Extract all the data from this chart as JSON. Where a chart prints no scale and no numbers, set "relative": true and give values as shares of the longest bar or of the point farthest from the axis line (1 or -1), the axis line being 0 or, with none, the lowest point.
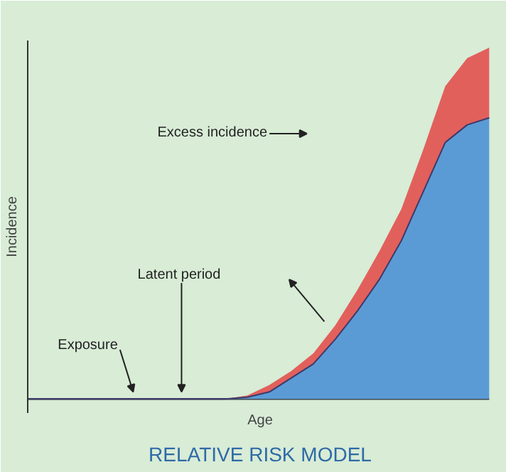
{
  "chart_data": {
    "type": "area",
    "stacked": true,
    "relative": true,
    "title": "RELATIVE RISK MODEL",
    "xlabel": "Age",
    "ylabel": "Incidence",
    "categories": [
      null,
      null,
      null,
      null,
      null,
      null,
      null,
      null,
      null,
      null,
      null,
      null,
      null,
      null,
      null,
      null,
      null,
      null,
      null,
      null,
      null,
      null
    ],
    "series": [
      {
        "color": "#5b9bd5",
        "values": [
          0,
          0,
          0,
          0,
          0,
          0,
          0,
          0,
          0,
          0,
          0.005,
          0.02,
          0.06,
          0.1,
          0.17,
          0.25,
          0.34,
          0.45,
          0.59,
          0.73,
          0.78,
          0.8
        ]
      },
      {
        "color": "#e2605c",
        "values": [
          0,
          0,
          0,
          0,
          0,
          0,
          0,
          0,
          0,
          0,
          0.005,
          0.02,
          0.02,
          0.03,
          0.04,
          0.06,
          0.08,
          0.09,
          0.12,
          0.16,
          0.19,
          0.2
        ]
      }
    ],
    "annotations": [
      "Excess incidence",
      "Latent period",
      "Exposure"
    ],
    "grid": false,
    "legend": false
  }
}
